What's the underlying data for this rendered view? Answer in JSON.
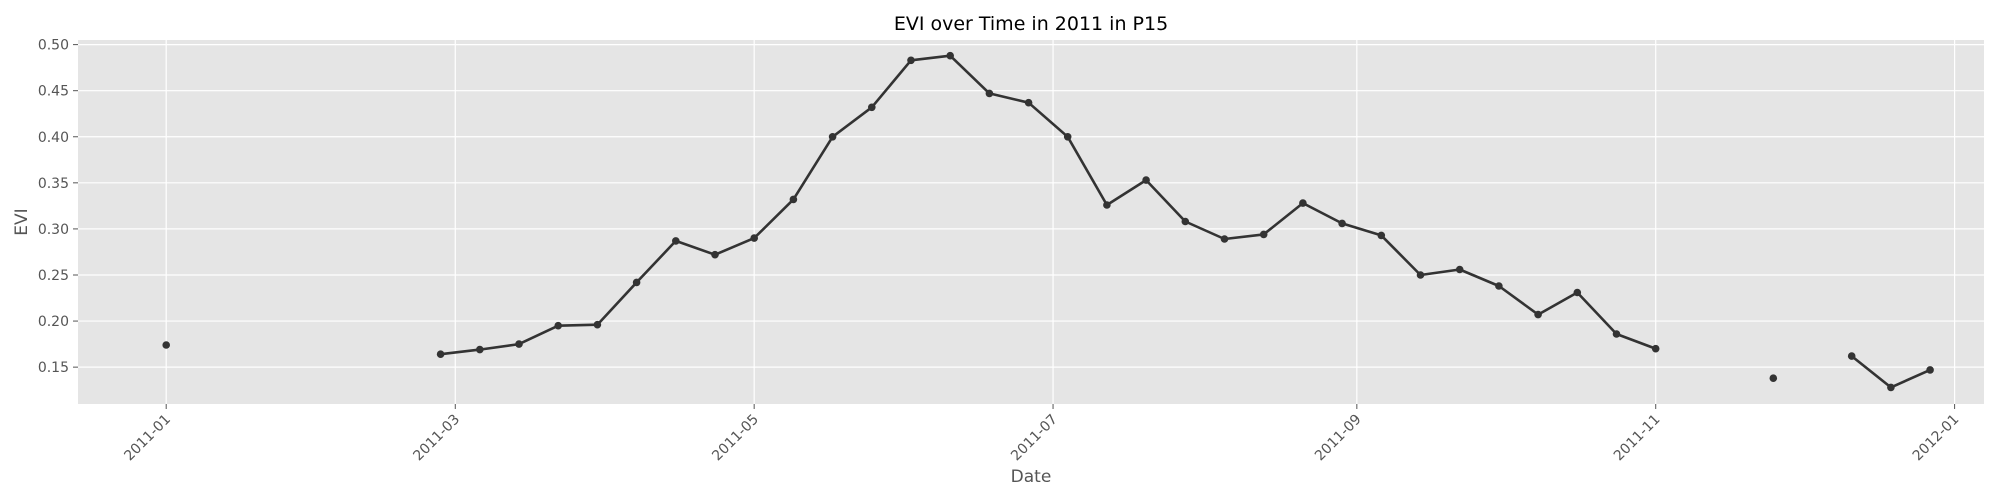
{
  "chart_data": {
    "type": "line",
    "title": "EVI over Time in 2011 in P15",
    "xlabel": "Date",
    "ylabel": "EVI",
    "x_ticks": [
      "2011-01",
      "2011-03",
      "2011-05",
      "2011-07",
      "2011-09",
      "2011-11",
      "2012-01"
    ],
    "x_tick_dates": [
      "2011-01-01",
      "2011-03-01",
      "2011-05-01",
      "2011-07-01",
      "2011-09-01",
      "2011-11-01",
      "2012-01-01"
    ],
    "y_ticks": [
      "0.15",
      "0.20",
      "0.25",
      "0.30",
      "0.35",
      "0.40",
      "0.45",
      "0.50"
    ],
    "xlim": [
      "2010-12-14",
      "2012-01-07"
    ],
    "ylim": [
      0.11,
      0.505
    ],
    "grid": true,
    "colors": {
      "background": "#e5e5e5",
      "grid": "#ffffff",
      "line": "#333333"
    },
    "series": [
      {
        "segments": [
          [
            {
              "x": "2011-01-01",
              "y": 0.174
            }
          ],
          [
            {
              "x": "2011-02-26",
              "y": 0.164
            },
            {
              "x": "2011-03-06",
              "y": 0.169
            },
            {
              "x": "2011-03-14",
              "y": 0.175
            },
            {
              "x": "2011-03-22",
              "y": 0.195
            },
            {
              "x": "2011-03-30",
              "y": 0.196
            },
            {
              "x": "2011-04-07",
              "y": 0.242
            },
            {
              "x": "2011-04-15",
              "y": 0.287
            },
            {
              "x": "2011-04-23",
              "y": 0.272
            },
            {
              "x": "2011-05-01",
              "y": 0.29
            },
            {
              "x": "2011-05-09",
              "y": 0.332
            },
            {
              "x": "2011-05-17",
              "y": 0.4
            },
            {
              "x": "2011-05-25",
              "y": 0.432
            },
            {
              "x": "2011-06-02",
              "y": 0.483
            },
            {
              "x": "2011-06-10",
              "y": 0.488
            },
            {
              "x": "2011-06-18",
              "y": 0.447
            },
            {
              "x": "2011-06-26",
              "y": 0.437
            },
            {
              "x": "2011-07-04",
              "y": 0.4
            },
            {
              "x": "2011-07-12",
              "y": 0.326
            },
            {
              "x": "2011-07-20",
              "y": 0.353
            },
            {
              "x": "2011-07-28",
              "y": 0.308
            },
            {
              "x": "2011-08-05",
              "y": 0.289
            },
            {
              "x": "2011-08-13",
              "y": 0.294
            },
            {
              "x": "2011-08-21",
              "y": 0.328
            },
            {
              "x": "2011-08-29",
              "y": 0.306
            },
            {
              "x": "2011-09-06",
              "y": 0.293
            },
            {
              "x": "2011-09-14",
              "y": 0.25
            },
            {
              "x": "2011-09-22",
              "y": 0.256
            },
            {
              "x": "2011-09-30",
              "y": 0.238
            },
            {
              "x": "2011-10-08",
              "y": 0.207
            },
            {
              "x": "2011-10-16",
              "y": 0.231
            },
            {
              "x": "2011-10-24",
              "y": 0.186
            },
            {
              "x": "2011-11-01",
              "y": 0.17
            }
          ],
          [
            {
              "x": "2011-11-25",
              "y": 0.138
            }
          ],
          [
            {
              "x": "2011-12-11",
              "y": 0.162
            },
            {
              "x": "2011-12-19",
              "y": 0.128
            },
            {
              "x": "2011-12-27",
              "y": 0.147
            }
          ]
        ]
      }
    ]
  }
}
